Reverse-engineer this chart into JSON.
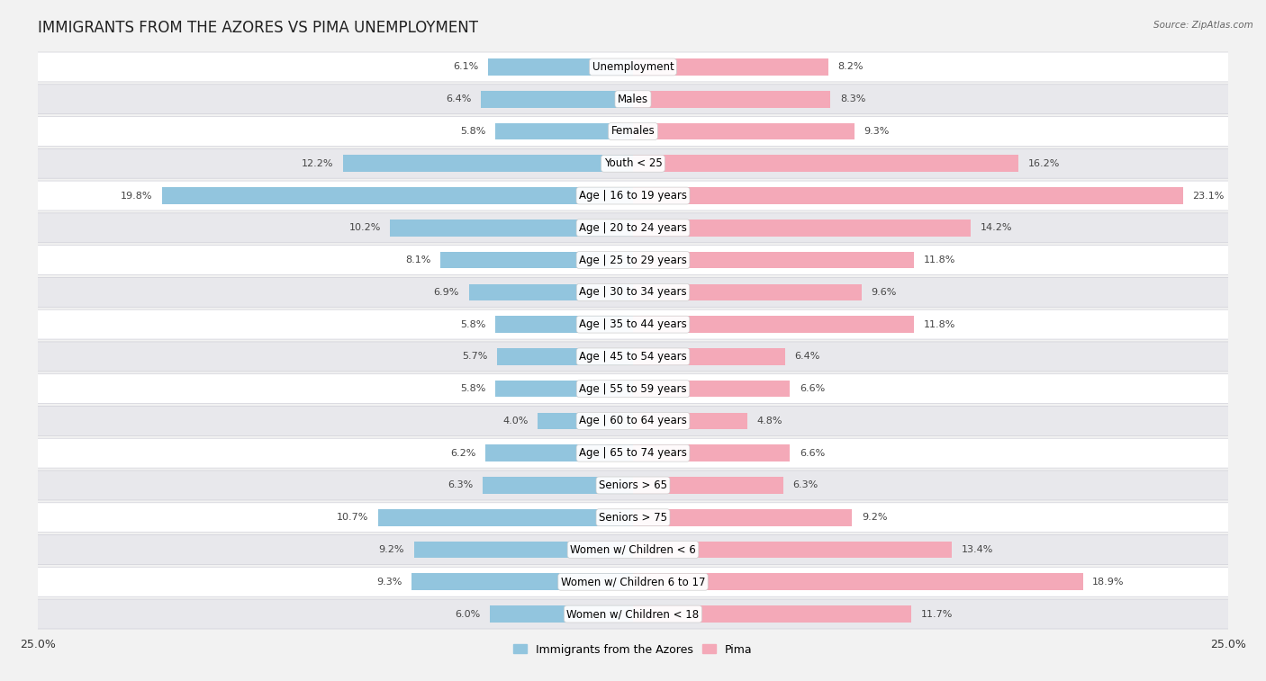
{
  "title": "IMMIGRANTS FROM THE AZORES VS PIMA UNEMPLOYMENT",
  "source": "Source: ZipAtlas.com",
  "categories": [
    "Unemployment",
    "Males",
    "Females",
    "Youth < 25",
    "Age | 16 to 19 years",
    "Age | 20 to 24 years",
    "Age | 25 to 29 years",
    "Age | 30 to 34 years",
    "Age | 35 to 44 years",
    "Age | 45 to 54 years",
    "Age | 55 to 59 years",
    "Age | 60 to 64 years",
    "Age | 65 to 74 years",
    "Seniors > 65",
    "Seniors > 75",
    "Women w/ Children < 6",
    "Women w/ Children 6 to 17",
    "Women w/ Children < 18"
  ],
  "left_values": [
    6.1,
    6.4,
    5.8,
    12.2,
    19.8,
    10.2,
    8.1,
    6.9,
    5.8,
    5.7,
    5.8,
    4.0,
    6.2,
    6.3,
    10.7,
    9.2,
    9.3,
    6.0
  ],
  "right_values": [
    8.2,
    8.3,
    9.3,
    16.2,
    23.1,
    14.2,
    11.8,
    9.6,
    11.8,
    6.4,
    6.6,
    4.8,
    6.6,
    6.3,
    9.2,
    13.4,
    18.9,
    11.7
  ],
  "left_color": "#92c5de",
  "right_color": "#f4a9b8",
  "left_label": "Immigrants from the Azores",
  "right_label": "Pima",
  "x_max": 25.0,
  "bg_color": "#f2f2f2",
  "row_light": "#ffffff",
  "row_dark": "#e8e8ec",
  "row_border": "#d0d0d8",
  "title_fontsize": 12,
  "label_fontsize": 8.5,
  "value_fontsize": 8.0,
  "source_fontsize": 7.5
}
